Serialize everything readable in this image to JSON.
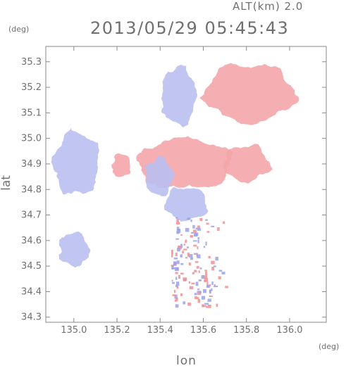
{
  "header": {
    "altitude_label": "ALT(km) 2.0",
    "timestamp": "2013/05/29 05:45:43"
  },
  "chart_data": {
    "type": "heatmap",
    "title": "2013/05/29 05:45:43",
    "subtitle": "ALT(km) 2.0",
    "xlabel": "lon",
    "ylabel": "lat",
    "x_unit": "(deg)",
    "y_unit": "(deg)",
    "xlim": [
      134.87,
      136.17
    ],
    "ylim": [
      34.28,
      35.36
    ],
    "x_ticks": [
      {
        "value": 135.0,
        "label": "135.0"
      },
      {
        "value": 135.2,
        "label": "135.2"
      },
      {
        "value": 135.4,
        "label": "135.4"
      },
      {
        "value": 135.6,
        "label": "135.6"
      },
      {
        "value": 135.8,
        "label": "135.8"
      },
      {
        "value": 136.0,
        "label": "136.0"
      }
    ],
    "y_ticks": [
      {
        "value": 34.3,
        "label": "34.3"
      },
      {
        "value": 34.4,
        "label": "34.4"
      },
      {
        "value": 34.5,
        "label": "34.5"
      },
      {
        "value": 34.6,
        "label": "34.6"
      },
      {
        "value": 34.7,
        "label": "34.7"
      },
      {
        "value": 34.8,
        "label": "34.8"
      },
      {
        "value": 34.9,
        "label": "34.9"
      },
      {
        "value": 35.0,
        "label": "35.0"
      },
      {
        "value": 35.1,
        "label": "35.1"
      },
      {
        "value": 35.2,
        "label": "35.2"
      },
      {
        "value": 35.3,
        "label": "35.3"
      }
    ],
    "grid": false,
    "colors": {
      "positive": "#f4a5a8",
      "negative": "#b9bff0",
      "axis": "#8a8a8a"
    },
    "regions": [
      {
        "sign": "positive",
        "lon": [
          135.56,
          136.07
        ],
        "lat": [
          35.05,
          35.33
        ]
      },
      {
        "sign": "negative",
        "lon": [
          135.39,
          135.58
        ],
        "lat": [
          35.04,
          35.32
        ]
      },
      {
        "sign": "positive",
        "lon": [
          135.23,
          135.77
        ],
        "lat": [
          34.79,
          35.03
        ]
      },
      {
        "sign": "positive",
        "lon": [
          135.16,
          135.27
        ],
        "lat": [
          34.84,
          34.95
        ]
      },
      {
        "sign": "positive",
        "lon": [
          135.66,
          135.92
        ],
        "lat": [
          34.82,
          34.99
        ]
      },
      {
        "sign": "negative",
        "lon": [
          135.31,
          135.47
        ],
        "lat": [
          34.76,
          34.94
        ]
      },
      {
        "sign": "negative",
        "lon": [
          134.87,
          135.13
        ],
        "lat": [
          34.75,
          35.05
        ]
      },
      {
        "sign": "negative",
        "lon": [
          135.39,
          135.63
        ],
        "lat": [
          34.66,
          34.82
        ]
      },
      {
        "sign": "negative",
        "lon": [
          134.91,
          135.08
        ],
        "lat": [
          34.48,
          34.64
        ]
      },
      {
        "sign": "mixed",
        "lon": [
          135.45,
          135.72
        ],
        "lat": [
          34.34,
          34.7
        ]
      }
    ]
  }
}
